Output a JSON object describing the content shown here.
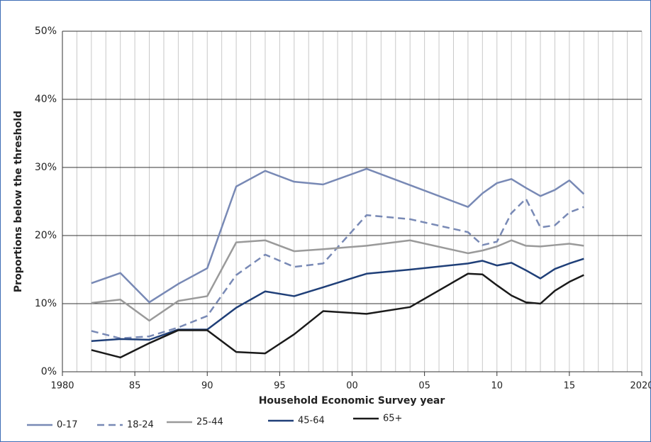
{
  "chart_data": {
    "type": "line",
    "x_label": "Household Economic Survey year",
    "y_label": "Proportions below the threshold",
    "x": [
      1982,
      1984,
      1986,
      1988,
      1990,
      1992,
      1994,
      1996,
      1998,
      2001,
      2004,
      2008,
      2009,
      2010,
      2011,
      2012,
      2013,
      2014,
      2015,
      2016
    ],
    "series": [
      {
        "name": "0-17",
        "color": "#7889b5",
        "style": "solid",
        "values": [
          13.0,
          14.5,
          10.2,
          12.9,
          15.2,
          27.2,
          29.5,
          27.9,
          27.5,
          29.8,
          27.4,
          24.2,
          26.2,
          27.7,
          28.3,
          27.0,
          25.8,
          26.7,
          28.1,
          26.1
        ]
      },
      {
        "name": "18-24",
        "color": "#7889b5",
        "style": "dashed",
        "values": [
          6.0,
          4.9,
          5.2,
          6.5,
          8.2,
          14.2,
          17.2,
          15.4,
          15.9,
          23.0,
          22.4,
          20.5,
          18.6,
          19.1,
          23.3,
          25.4,
          21.2,
          21.5,
          23.4,
          24.2
        ]
      },
      {
        "name": "25-44",
        "color": "#9a9a9a",
        "style": "solid",
        "values": [
          10.1,
          10.6,
          7.5,
          10.4,
          11.1,
          19.0,
          19.3,
          17.7,
          18.0,
          18.5,
          19.3,
          17.4,
          17.8,
          18.4,
          19.3,
          18.5,
          18.4,
          18.6,
          18.8,
          18.5
        ]
      },
      {
        "name": "45-64",
        "color": "#1f3f78",
        "style": "solid",
        "values": [
          4.5,
          4.8,
          4.7,
          6.2,
          6.2,
          9.4,
          11.8,
          11.1,
          12.4,
          14.4,
          15.0,
          15.9,
          16.3,
          15.6,
          16.0,
          14.9,
          13.7,
          15.1,
          15.9,
          16.6
        ]
      },
      {
        "name": "65+",
        "color": "#1a1a1a",
        "style": "solid",
        "values": [
          3.2,
          2.1,
          4.2,
          6.1,
          6.1,
          2.9,
          2.7,
          5.5,
          8.9,
          8.5,
          9.5,
          14.4,
          14.3,
          12.7,
          11.2,
          10.2,
          10.0,
          11.9,
          13.2,
          14.2
        ]
      }
    ],
    "xlim": [
      1980,
      2020
    ],
    "xticks": [
      1980,
      {
        "value": 1985,
        "label": "85"
      },
      {
        "value": 1990,
        "label": "90"
      },
      {
        "value": 1995,
        "label": "95"
      },
      {
        "value": 2000,
        "label": "00"
      },
      {
        "value": 2005,
        "label": "05"
      },
      {
        "value": 2010,
        "label": "10"
      },
      {
        "value": 2015,
        "label": "15"
      },
      2020
    ],
    "ylim": [
      0,
      50
    ],
    "yticks": [
      {
        "value": 0,
        "label": "0%"
      },
      {
        "value": 10,
        "label": "10%"
      },
      {
        "value": 20,
        "label": "20%"
      },
      {
        "value": 30,
        "label": "30%"
      },
      {
        "value": 40,
        "label": "40%"
      },
      {
        "value": 50,
        "label": "50%"
      }
    ],
    "grid": true,
    "legend": "bottom"
  }
}
